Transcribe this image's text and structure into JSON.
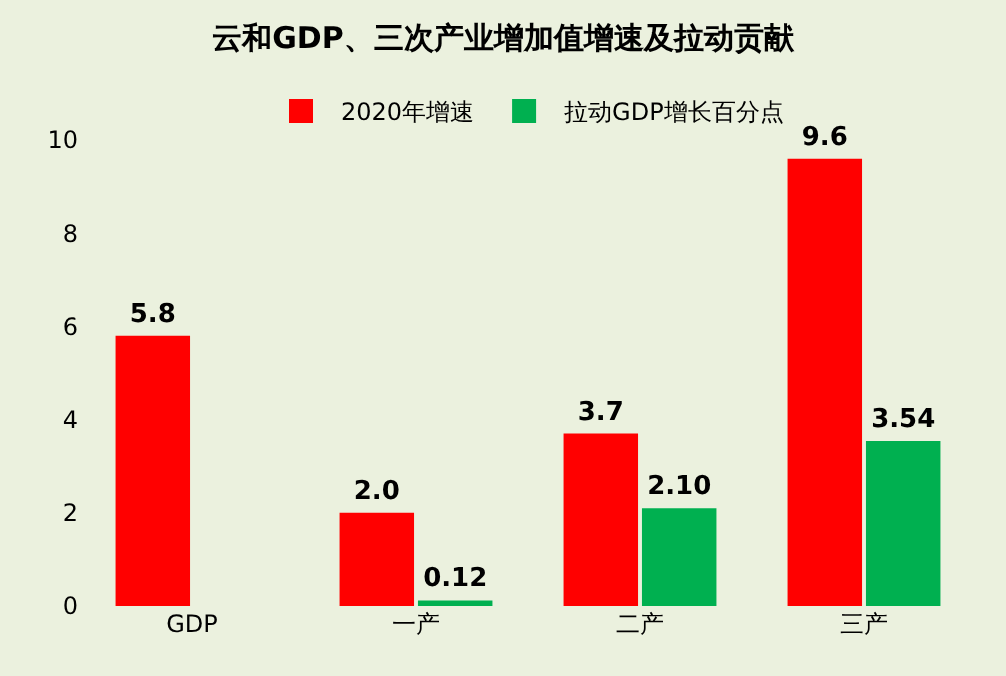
{
  "chart_data": {
    "type": "bar",
    "title": "云和GDP、三次产业增加值增速及拉动贡献",
    "categories": [
      "GDP",
      "一产",
      "二产",
      "三产"
    ],
    "series": [
      {
        "name": "2020年增速",
        "color": "#ff0000",
        "values": [
          5.8,
          2.0,
          3.7,
          9.6
        ],
        "value_labels": [
          "5.8",
          "2.0",
          "3.7",
          "9.6"
        ]
      },
      {
        "name": "拉动GDP增长百分点",
        "color": "#00b050",
        "values": [
          null,
          0.12,
          2.1,
          3.54
        ],
        "value_labels": [
          null,
          "0.12",
          "2.10",
          "3.54"
        ]
      }
    ],
    "ylim": [
      0,
      10
    ],
    "yticks": [
      0,
      2,
      4,
      6,
      8,
      10
    ],
    "grid": false,
    "legend": "top"
  }
}
